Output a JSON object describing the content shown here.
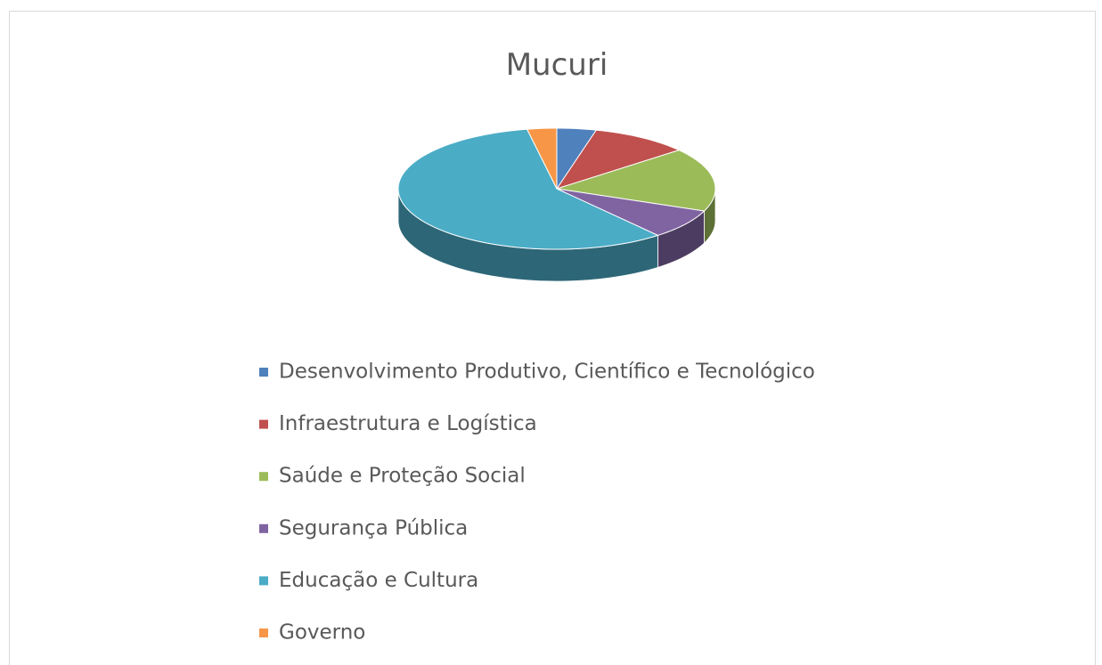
{
  "chart_data": {
    "type": "pie",
    "title": "Mucuri",
    "categories": [
      "Desenvolvimento Produtivo, Científico e Tecnológico",
      "Infraestrutura e Logística",
      "Saúde e Proteção Social",
      "Segurança Pública",
      "Educação e Cultura",
      "Governo"
    ],
    "values": [
      4,
      10,
      17,
      8,
      58,
      3
    ],
    "colors": [
      "#4f81bd",
      "#c0504d",
      "#9bbb59",
      "#8064a2",
      "#4bacc6",
      "#f79646"
    ],
    "legend": "bottom"
  }
}
